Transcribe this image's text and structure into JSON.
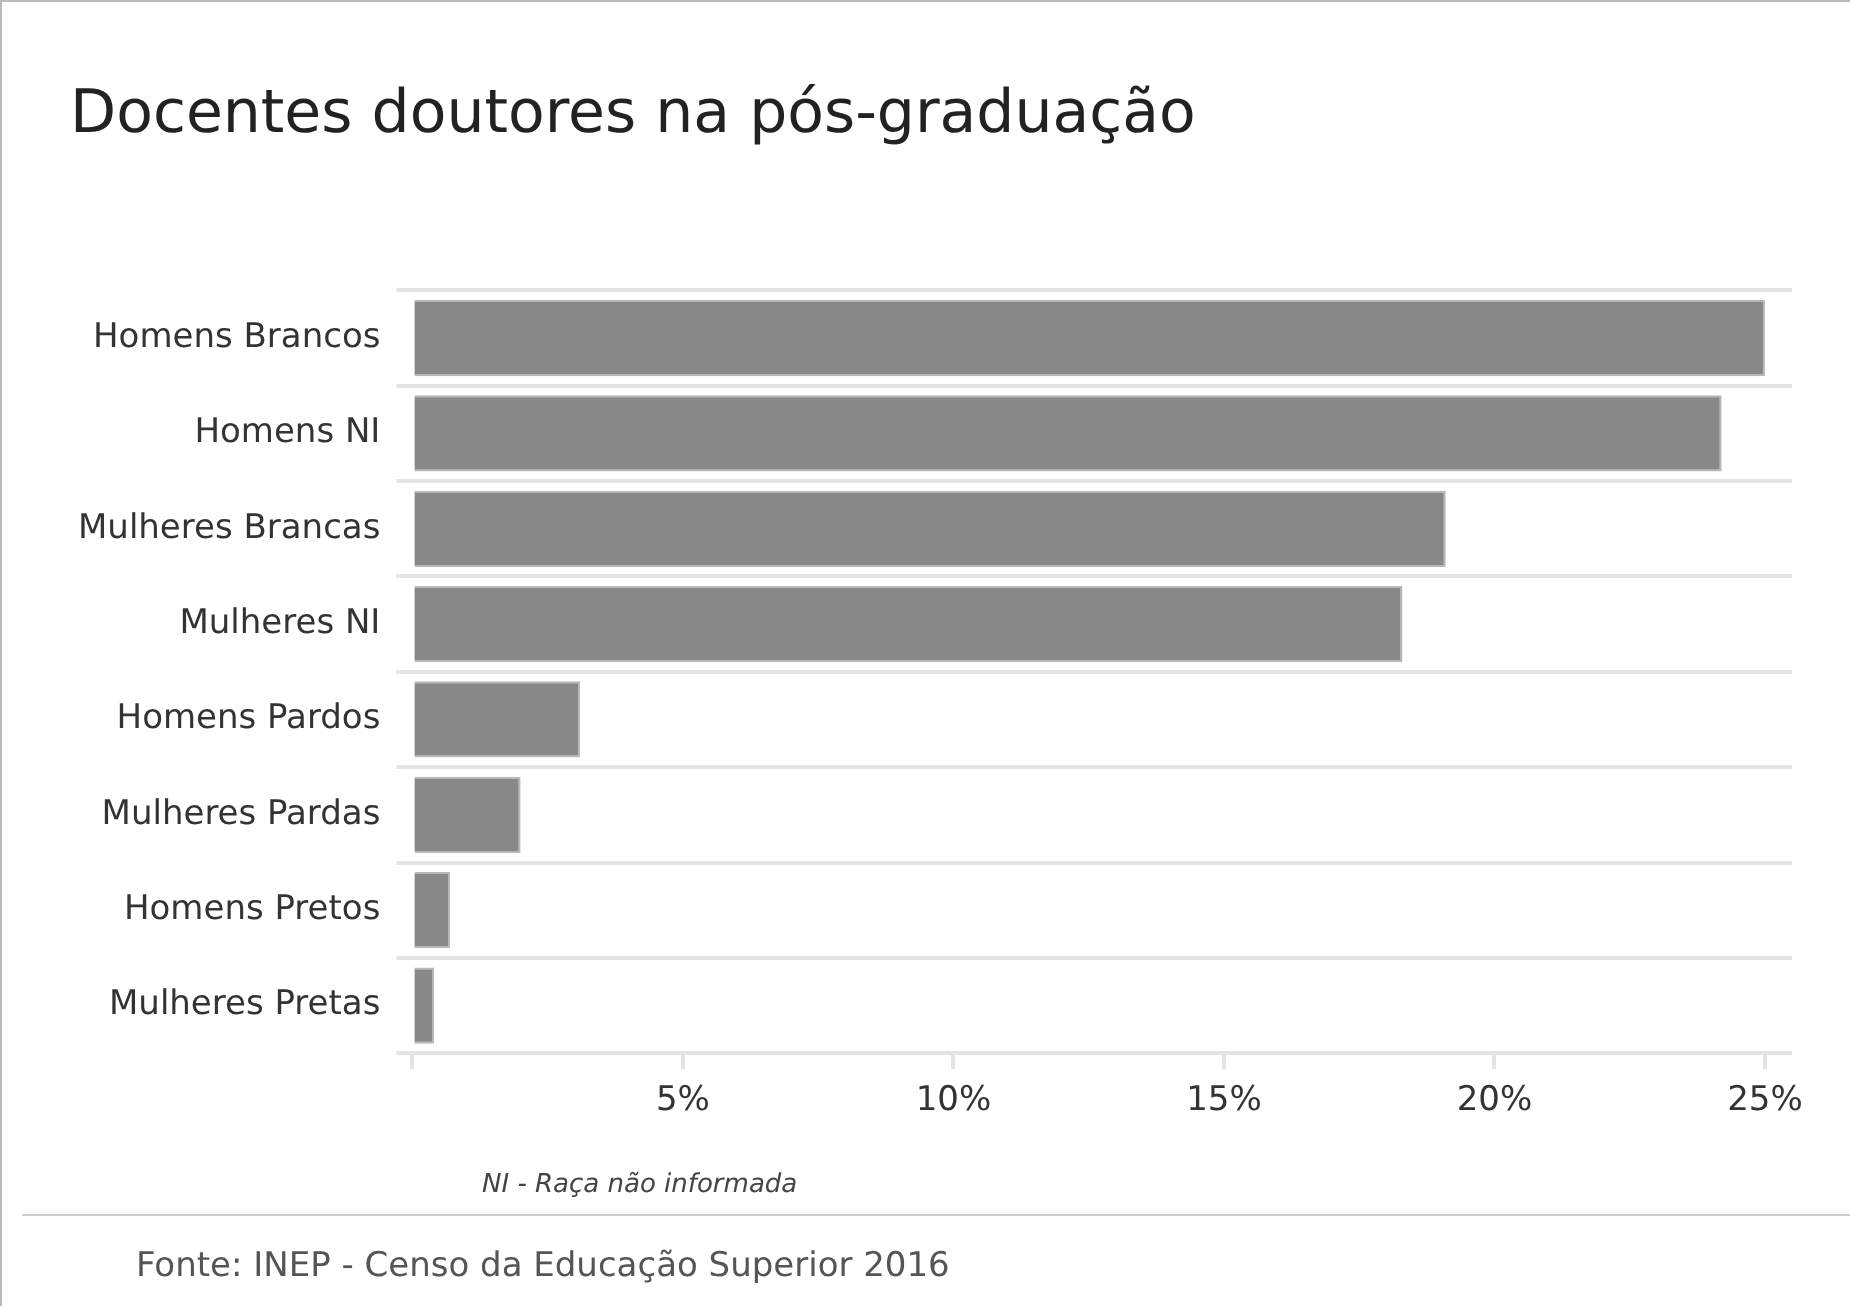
{
  "chart_data": {
    "type": "bar",
    "orientation": "horizontal",
    "title": "Docentes doutores na pós-graduação",
    "categories": [
      "Homens Brancos",
      "Homens NI",
      "Mulheres Brancas",
      "Mulheres NI",
      "Homens Pardos",
      "Mulheres Pardas",
      "Homens Pretos",
      "Mulheres Pretas"
    ],
    "values": [
      25.0,
      24.2,
      19.1,
      18.3,
      3.1,
      2.0,
      0.7,
      0.4
    ],
    "color": "#888888",
    "xlim": [
      0,
      25.5
    ],
    "xticks": [
      {
        "value": 0,
        "label": null
      },
      {
        "value": 5,
        "label": "5%"
      },
      {
        "value": 10,
        "label": "10%"
      },
      {
        "value": 15,
        "label": "15%"
      },
      {
        "value": 20,
        "label": "20%"
      },
      {
        "value": 25,
        "label": "25%"
      }
    ],
    "grid": "y",
    "annotations": [
      "NI - Raça não informada",
      "Fonte: INEP - Censo da Educação Superior 2016"
    ]
  }
}
